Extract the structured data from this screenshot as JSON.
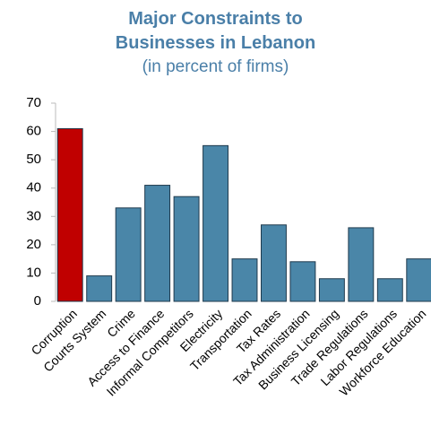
{
  "chart_data": {
    "type": "bar",
    "title": "Major Constraints to Businesses in Lebanon",
    "subtitle": "(in percent of firms)",
    "categories": [
      "Corruption",
      "Courts System",
      "Crime",
      "Access to Finance",
      "Informal Competitors",
      "Electricity",
      "Transportation",
      "Tax Rates",
      "Tax Administration",
      "Business Licensing",
      "Trade Regulations",
      "Labor Regulations",
      "Workforce Education"
    ],
    "values": [
      61,
      9,
      33,
      41,
      37,
      55,
      15,
      27,
      14,
      8,
      26,
      8,
      15
    ],
    "colors": [
      "#c00000",
      "#4a86a8",
      "#4a86a8",
      "#4a86a8",
      "#4a86a8",
      "#4a86a8",
      "#4a86a8",
      "#4a86a8",
      "#4a86a8",
      "#4a86a8",
      "#4a86a8",
      "#4a86a8",
      "#4a86a8"
    ],
    "ylim": [
      0,
      70
    ],
    "yticks": [
      0,
      10,
      20,
      30,
      40,
      50,
      60,
      70
    ],
    "grid": false
  }
}
